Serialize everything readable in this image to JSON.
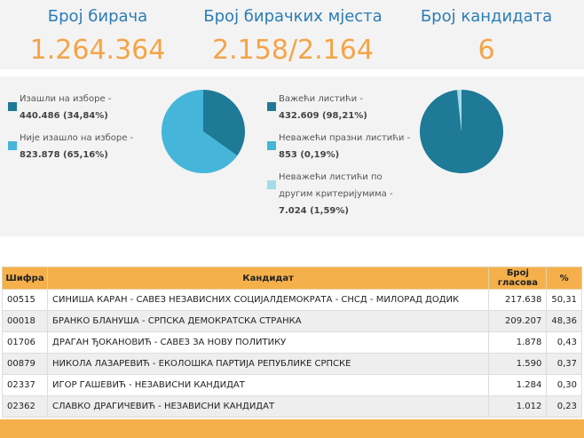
{
  "header": {
    "stats": [
      {
        "label": "Број бирача",
        "value": "1.264.364"
      },
      {
        "label": "Број бирачких мјеста",
        "value": "2.158/2.164"
      },
      {
        "label": "Број кандидата",
        "value": "6"
      }
    ]
  },
  "chart_data": [
    {
      "type": "pie",
      "categories": [
        "Изашли на изборе -",
        "Није изашло на изборе -"
      ],
      "values": [
        34.84,
        65.16
      ],
      "value_labels": [
        "440.486 (34,84%)",
        "823.878 (65,16%)"
      ],
      "colors": [
        "#1e7a96",
        "#45b6d9"
      ]
    },
    {
      "type": "pie",
      "categories": [
        "Важећи листићи -",
        "Неважећи празни листићи -",
        "Неважећи листићи по другим критеријумима -"
      ],
      "values": [
        98.21,
        0.19,
        1.59
      ],
      "value_labels": [
        "432.609 (98,21%)",
        "853 (0,19%)",
        "7.024 (1,59%)"
      ],
      "colors": [
        "#1e7a96",
        "#45b6d9",
        "#a6dbe8"
      ]
    }
  ],
  "table": {
    "columns": [
      "Шифра",
      "Кандидат",
      "Број гласова",
      "%"
    ],
    "rows": [
      [
        "00515",
        "СИНИША КАРАН - САВЕЗ НЕЗАВИСНИХ СОЦИЈАЛДЕМОКРАТА - СНСД - МИЛОРАД ДОДИК",
        "217.638",
        "50,31"
      ],
      [
        "00018",
        "БРАНКО БЛАНУША - СРПСКА ДЕМОКРАТСКА СТРАНКА",
        "209.207",
        "48,36"
      ],
      [
        "01706",
        "ДРАГАН ЂОКАНОВИЋ - САВЕЗ ЗА НОВУ ПОЛИТИКУ",
        "1.878",
        "0,43"
      ],
      [
        "00879",
        "НИКОЛА ЛАЗАРЕВИЋ - ЕКОЛОШКА ПАРТИЈА РЕПУБЛИКЕ СРПСКЕ",
        "1.590",
        "0,37"
      ],
      [
        "02337",
        "ИГОР ГАШЕВИЋ - НЕЗАВИСНИ КАНДИДАТ",
        "1.284",
        "0,30"
      ],
      [
        "02362",
        "СЛАВКО ДРАГИЧЕВИЋ - НЕЗАВИСНИ КАНДИДАТ",
        "1.012",
        "0,23"
      ]
    ]
  }
}
